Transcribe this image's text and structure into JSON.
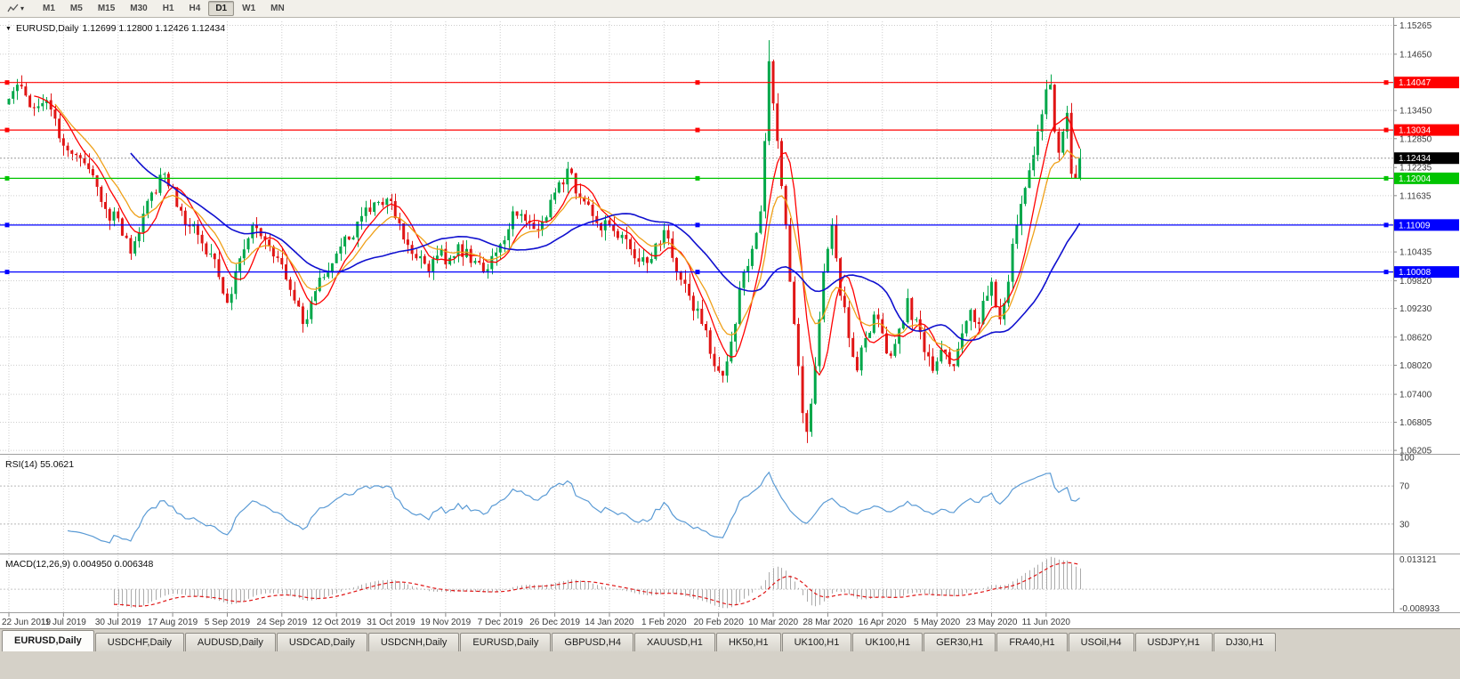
{
  "header": {
    "symbol": "EURUSD,Daily",
    "ohlc": "1.12699 1.12800 1.12426 1.12434"
  },
  "toolbar": {
    "timeframes": [
      "M1",
      "M5",
      "M15",
      "M30",
      "H1",
      "H4",
      "D1",
      "W1",
      "MN"
    ],
    "active": "D1"
  },
  "tabs": {
    "items": [
      "EURUSD,Daily",
      "USDCHF,Daily",
      "AUDUSD,Daily",
      "USDCAD,Daily",
      "USDCNH,Daily",
      "EURUSD,Daily",
      "GBPUSD,H4",
      "XAUUSD,H1",
      "HK50,H1",
      "UK100,H1",
      "UK100,H1",
      "GER30,H1",
      "FRA40,H1",
      "USOil,H4",
      "USDJPY,H1",
      "DJ30,H1"
    ],
    "active_index": 0
  },
  "colors": {
    "up": "#00a74a",
    "down": "#e01515",
    "grid": "#cdcdcd",
    "axis_text": "#3a3a3a",
    "rsi": "#5b9bd5",
    "macd_hist": "#ababab",
    "macd_signal": "#e01515",
    "current_tag": "#000000"
  },
  "chart_data": {
    "type": "candlestick",
    "symbol": "EURUSD",
    "timeframe": "Daily",
    "price_axis": {
      "min": 1.0615,
      "max": 1.1535,
      "labels": [
        "1.15265",
        "1.14650",
        "1.13450",
        "1.12850",
        "1.12235",
        "1.11635",
        "1.10435",
        "1.09820",
        "1.09230",
        "1.08620",
        "1.08020",
        "1.07400",
        "1.06805",
        "1.06205"
      ],
      "unlabeled_grid": [
        1.1405,
        1.11035
      ]
    },
    "current_price": {
      "value": 1.12434,
      "label": "1.12434"
    },
    "horizontal_lines": [
      {
        "price": 1.14047,
        "label": "1.14047",
        "color": "#ff0000"
      },
      {
        "price": 1.13034,
        "label": "1.13034",
        "color": "#ff0000"
      },
      {
        "price": 1.12004,
        "label": "1.12004",
        "color": "#00c400"
      },
      {
        "price": 1.11009,
        "label": "1.11009",
        "color": "#0000ff"
      },
      {
        "price": 1.10008,
        "label": "1.10008",
        "color": "#0000ff"
      }
    ],
    "time_axis": {
      "label_step": 13,
      "labels": [
        "22 Jun 2019",
        "11 Jul 2019",
        "30 Jul 2019",
        "17 Aug 2019",
        "5 Sep 2019",
        "24 Sep 2019",
        "12 Oct 2019",
        "31 Oct 2019",
        "19 Nov 2019",
        "7 Dec 2019",
        "26 Dec 2019",
        "14 Jan 2020",
        "1 Feb 2020",
        "20 Feb 2020",
        "10 Mar 2020",
        "28 Mar 2020",
        "16 Apr 2020",
        "5 May 2020",
        "23 May 2020",
        "11 Jun 2020"
      ]
    },
    "candles": {
      "count": 256,
      "seed": 11,
      "anchors": [
        [
          0,
          1.137
        ],
        [
          2,
          1.14
        ],
        [
          6,
          1.135
        ],
        [
          9,
          1.1367
        ],
        [
          13,
          1.127
        ],
        [
          16,
          1.125
        ],
        [
          19,
          1.122
        ],
        [
          22,
          1.115
        ],
        [
          26,
          1.1115
        ],
        [
          29,
          1.104
        ],
        [
          31,
          1.1085
        ],
        [
          34,
          1.117
        ],
        [
          37,
          1.121
        ],
        [
          39,
          1.118
        ],
        [
          42,
          1.11
        ],
        [
          45,
          1.108
        ],
        [
          48,
          1.104
        ],
        [
          50,
          1.099
        ],
        [
          52,
          1.0935
        ],
        [
          55,
          1.103
        ],
        [
          58,
          1.11
        ],
        [
          61,
          1.107
        ],
        [
          65,
          1.1017
        ],
        [
          68,
          1.094
        ],
        [
          70,
          1.089
        ],
        [
          73,
          1.096
        ],
        [
          76,
          1.1
        ],
        [
          78,
          1.104
        ],
        [
          81,
          1.107
        ],
        [
          84,
          1.112
        ],
        [
          88,
          1.115
        ],
        [
          91,
          1.1152
        ],
        [
          94,
          1.107
        ],
        [
          97,
          1.103
        ],
        [
          100,
          1.1
        ],
        [
          103,
          1.105
        ],
        [
          104,
          1.1017
        ],
        [
          107,
          1.106
        ],
        [
          110,
          1.102
        ],
        [
          113,
          1.1
        ],
        [
          117,
          1.106
        ],
        [
          120,
          1.113
        ],
        [
          123,
          1.111
        ],
        [
          126,
          1.109
        ],
        [
          130,
          1.117
        ],
        [
          133,
          1.1221
        ],
        [
          136,
          1.116
        ],
        [
          139,
          1.112
        ],
        [
          143,
          1.11
        ],
        [
          146,
          1.108
        ],
        [
          149,
          1.103
        ],
        [
          152,
          1.102
        ],
        [
          156,
          1.109
        ],
        [
          159,
          1.1
        ],
        [
          162,
          1.095
        ],
        [
          165,
          1.089
        ],
        [
          168,
          1.08
        ],
        [
          169,
          1.079
        ],
        [
          171,
          1.081
        ],
        [
          173,
          1.089
        ],
        [
          175,
          1.1
        ],
        [
          177,
          1.105
        ],
        [
          179,
          1.113
        ],
        [
          180,
          1.128
        ],
        [
          181,
          1.145
        ],
        [
          182,
          1.136
        ],
        [
          183,
          1.128
        ],
        [
          184,
          1.1184
        ],
        [
          185,
          1.11
        ],
        [
          186,
          1.098
        ],
        [
          187,
          1.089
        ],
        [
          188,
          1.08
        ],
        [
          189,
          1.07
        ],
        [
          190,
          1.066
        ],
        [
          191,
          1.072
        ],
        [
          192,
          1.08
        ],
        [
          193,
          1.09
        ],
        [
          194,
          1.1
        ],
        [
          195,
          1.105
        ],
        [
          196,
          1.11
        ],
        [
          197,
          1.103
        ],
        [
          198,
          1.095
        ],
        [
          200,
          1.086
        ],
        [
          202,
          1.0791
        ],
        [
          204,
          1.086
        ],
        [
          206,
          1.091
        ],
        [
          208,
          1.087
        ],
        [
          210,
          1.0822
        ],
        [
          212,
          1.088
        ],
        [
          214,
          1.0945
        ],
        [
          216,
          1.09
        ],
        [
          218,
          1.083
        ],
        [
          220,
          1.079
        ],
        [
          221,
          1.081
        ],
        [
          223,
          1.083
        ],
        [
          225,
          1.08
        ],
        [
          227,
          1.087
        ],
        [
          229,
          1.092
        ],
        [
          231,
          1.089
        ],
        [
          233,
          1.095
        ],
        [
          234,
          1.098
        ],
        [
          236,
          1.09
        ],
        [
          238,
          1.098
        ],
        [
          240,
          1.1101
        ],
        [
          242,
          1.118
        ],
        [
          244,
          1.125
        ],
        [
          246,
          1.1337
        ],
        [
          247,
          1.139
        ],
        [
          248,
          1.14
        ],
        [
          249,
          1.13
        ],
        [
          250,
          1.1255
        ],
        [
          251,
          1.13
        ],
        [
          252,
          1.134
        ],
        [
          253,
          1.121
        ],
        [
          254,
          1.12
        ],
        [
          255,
          1.12434
        ]
      ],
      "extremes": [
        {
          "i": 2,
          "high": 1.1412
        },
        {
          "i": 181,
          "high": 1.1495
        },
        {
          "i": 190,
          "low": 1.0636
        },
        {
          "i": 248,
          "high": 1.1422
        }
      ]
    },
    "moving_averages": [
      {
        "name": "ma-fast",
        "type": "sma",
        "period": 7,
        "color": "#ff0000"
      },
      {
        "name": "ma-mid",
        "type": "ema",
        "period": 12,
        "color": "#efa018"
      },
      {
        "name": "ma-slow",
        "type": "sma",
        "period": 30,
        "color": "#1010cf"
      }
    ],
    "indicators": [
      {
        "name": "rsi",
        "label": "RSI(14) 55.0621",
        "period": 14,
        "value": "55.0621",
        "color": "#5b9bd5",
        "levels": [
          70,
          30
        ],
        "axis_labels": [
          {
            "v": 100,
            "text": "100"
          },
          {
            "v": 70,
            "text": "70"
          },
          {
            "v": 30,
            "text": "30"
          }
        ]
      },
      {
        "name": "macd",
        "label": "MACD(12,26,9) 0.004950 0.006348",
        "values": "0.004950 0.006348",
        "axis_top": {
          "v": 0.013121,
          "text": "0.013121"
        },
        "axis_bottom": {
          "v": -0.008933,
          "text": "-0.008933"
        }
      }
    ]
  }
}
